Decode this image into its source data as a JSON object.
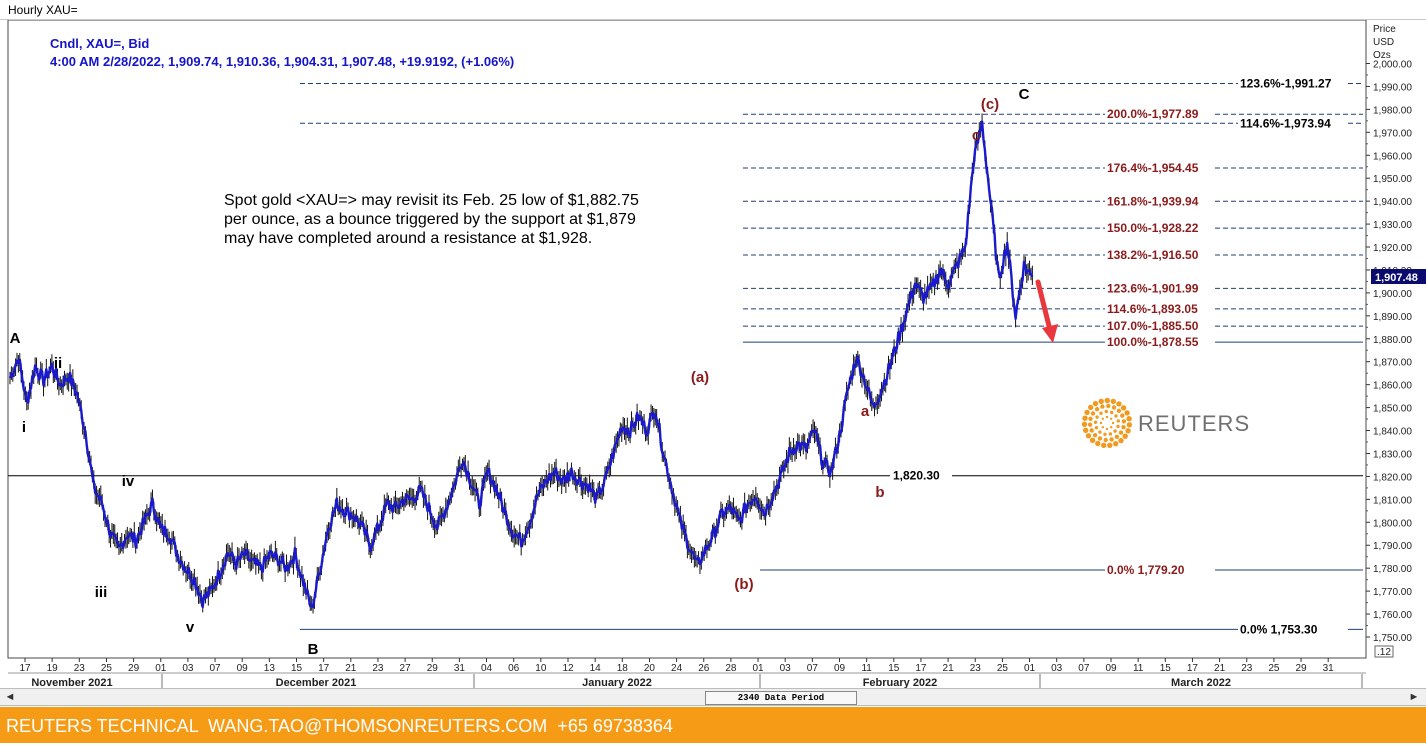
{
  "window": {
    "title": "Hourly XAU="
  },
  "info": {
    "line1": "Cndl, XAU=, Bid",
    "line2": "4:00 AM 2/28/2022, 1,909.74, 1,910.36, 1,904.31, 1,907.48, +19.9192, (+1.06%)"
  },
  "annotation": {
    "line1": "Spot gold <XAU=> may revisit its Feb. 25 low of $1,882.75",
    "line2": "per ounce, as a bounce triggered by the support at $1,879",
    "line3": "may have completed around a resistance at $1,928."
  },
  "logo": {
    "word": "REUTERS"
  },
  "footer": {
    "text": "REUTERS TECHNICAL  WANG.TAO@THOMSONREUTERS.COM  +65 69738364"
  },
  "scroll": {
    "data_period": "2340 Data Period",
    "left_arrow": "◄",
    "right_arrow": "►"
  },
  "colors": {
    "candles": "#1a1acc",
    "fib_line": "#1f3f7a",
    "wave_red": "#8b1a1a",
    "accent_arrow": "#e8383d",
    "footer": "#f59b16"
  },
  "chart_data": {
    "type": "candlestick",
    "instrument": "XAU=",
    "interval": "Hourly",
    "price_axis": {
      "title": [
        "Price",
        "USD",
        "Ozs"
      ],
      "ylim": [
        1741,
        2007
      ],
      "ticks": [
        "1,750.00",
        "1,760.00",
        "1,770.00",
        "1,780.00",
        "1,790.00",
        "1,800.00",
        "1,810.00",
        "1,820.00",
        "1,830.00",
        "1,840.00",
        "1,850.00",
        "1,860.00",
        "1,870.00",
        "1,880.00",
        "1,890.00",
        "1,900.00",
        "1,910.00",
        "1,920.00",
        "1,930.00",
        "1,940.00",
        "1,950.00",
        "1,960.00",
        "1,970.00",
        "1,980.00",
        "1,990.00",
        "2,000.00"
      ],
      "tick_values": [
        1750,
        1760,
        1770,
        1780,
        1790,
        1800,
        1810,
        1820,
        1830,
        1840,
        1850,
        1860,
        1870,
        1880,
        1890,
        1900,
        1910,
        1920,
        1930,
        1940,
        1950,
        1960,
        1970,
        1980,
        1990,
        2000
      ],
      "current_price": 1907.48,
      "current_label": "1,907.48",
      "corner_label": ".12"
    },
    "date_axis": {
      "day_ticks": [
        "17",
        "19",
        "23",
        "25",
        "29",
        "01",
        "03",
        "07",
        "09",
        "13",
        "15",
        "17",
        "21",
        "23",
        "27",
        "29",
        "31",
        "04",
        "06",
        "10",
        "12",
        "14",
        "18",
        "20",
        "24",
        "26",
        "28",
        "01",
        "03",
        "07",
        "09",
        "11",
        "15",
        "17",
        "21",
        "23",
        "25",
        "01",
        "03",
        "07",
        "09",
        "11",
        "15",
        "17",
        "21",
        "23",
        "25",
        "29",
        "31"
      ],
      "months": [
        "November 2021",
        "December 2021",
        "January 2022",
        "February 2022",
        "March 2022"
      ]
    },
    "fib_levels": [
      {
        "label": "123.6%",
        "value": 1991.27,
        "value_text": "1,991.27",
        "color": "black"
      },
      {
        "label": "114.6%",
        "value": 1973.94,
        "value_text": "1,973.94",
        "color": "black"
      },
      {
        "label": "200.0%",
        "value": 1977.89,
        "value_text": "1,977.89",
        "color": "red"
      },
      {
        "label": "176.4%",
        "value": 1954.45,
        "value_text": "1,954.45",
        "color": "red"
      },
      {
        "label": "161.8%",
        "value": 1939.94,
        "value_text": "1,939.94",
        "color": "red"
      },
      {
        "label": "150.0%",
        "value": 1928.22,
        "value_text": "1,928.22",
        "color": "red"
      },
      {
        "label": "138.2%",
        "value": 1916.5,
        "value_text": "1,916.50",
        "color": "red"
      },
      {
        "label": "123.6%",
        "value": 1901.99,
        "value_text": "1,901.99",
        "color": "red"
      },
      {
        "label": "114.6%",
        "value": 1893.05,
        "value_text": "1,893.05",
        "color": "red"
      },
      {
        "label": "107.0%",
        "value": 1885.5,
        "value_text": "1,885.50",
        "color": "red"
      },
      {
        "label": "100.0%",
        "value": 1878.55,
        "value_text": "1,878.55",
        "color": "red"
      },
      {
        "label": "0.0%",
        "value": 1779.2,
        "value_text": "1,779.20",
        "color": "red"
      },
      {
        "label": "0.0%",
        "value": 1753.3,
        "value_text": "1,753.30",
        "color": "black"
      }
    ],
    "support_line": {
      "value": 1820.3,
      "value_text": "1,820.30"
    },
    "wave_labels": [
      {
        "text": "A",
        "color": "black"
      },
      {
        "text": "i",
        "color": "black"
      },
      {
        "text": "ii",
        "color": "black"
      },
      {
        "text": "iii",
        "color": "black"
      },
      {
        "text": "iv",
        "color": "black"
      },
      {
        "text": "v",
        "color": "black"
      },
      {
        "text": "B",
        "color": "black"
      },
      {
        "text": "(a)",
        "color": "red"
      },
      {
        "text": "(b)",
        "color": "red"
      },
      {
        "text": "a",
        "color": "red"
      },
      {
        "text": "b",
        "color": "red"
      },
      {
        "text": "c",
        "color": "red"
      },
      {
        "text": "(c)",
        "color": "red"
      },
      {
        "text": "C",
        "color": "black"
      }
    ],
    "price_path": [
      [
        0,
        1863
      ],
      [
        0.02,
        1872
      ],
      [
        0.04,
        1852
      ],
      [
        0.06,
        1868
      ],
      [
        0.08,
        1862
      ],
      [
        0.1,
        1868
      ],
      [
        0.12,
        1860
      ],
      [
        0.14,
        1864
      ],
      [
        0.16,
        1856
      ],
      [
        0.18,
        1840
      ],
      [
        0.2,
        1815
      ],
      [
        0.22,
        1808
      ],
      [
        0.24,
        1795
      ],
      [
        0.26,
        1788
      ],
      [
        0.28,
        1795
      ],
      [
        0.3,
        1792
      ],
      [
        0.32,
        1800
      ],
      [
        0.34,
        1808
      ],
      [
        0.36,
        1797
      ],
      [
        0.38,
        1795
      ],
      [
        0.4,
        1786
      ],
      [
        0.42,
        1780
      ],
      [
        0.44,
        1775
      ],
      [
        0.46,
        1766
      ],
      [
        0.48,
        1770
      ],
      [
        0.5,
        1778
      ],
      [
        0.52,
        1787
      ],
      [
        0.54,
        1782
      ],
      [
        0.56,
        1786
      ],
      [
        0.58,
        1782
      ],
      [
        0.6,
        1780
      ],
      [
        0.62,
        1786
      ],
      [
        0.64,
        1784
      ],
      [
        0.66,
        1780
      ],
      [
        0.68,
        1786
      ],
      [
        0.7,
        1774
      ],
      [
        0.72,
        1762
      ],
      [
        0.74,
        1780
      ],
      [
        0.76,
        1798
      ],
      [
        0.78,
        1808
      ],
      [
        0.8,
        1805
      ],
      [
        0.82,
        1803
      ],
      [
        0.84,
        1798
      ],
      [
        0.86,
        1790
      ],
      [
        0.88,
        1798
      ],
      [
        0.9,
        1808
      ],
      [
        0.92,
        1806
      ],
      [
        0.94,
        1810
      ],
      [
        0.96,
        1810
      ],
      [
        0.98,
        1814
      ],
      [
        1.0,
        1806
      ],
      [
        1.02,
        1798
      ],
      [
        1.04,
        1806
      ],
      [
        1.06,
        1816
      ],
      [
        1.08,
        1828
      ],
      [
        1.1,
        1818
      ],
      [
        1.12,
        1808
      ],
      [
        1.14,
        1822
      ],
      [
        1.16,
        1815
      ],
      [
        1.18,
        1805
      ],
      [
        1.2,
        1796
      ],
      [
        1.22,
        1792
      ],
      [
        1.24,
        1800
      ],
      [
        1.26,
        1812
      ],
      [
        1.28,
        1818
      ],
      [
        1.3,
        1822
      ],
      [
        1.32,
        1818
      ],
      [
        1.34,
        1822
      ],
      [
        1.36,
        1818
      ],
      [
        1.38,
        1816
      ],
      [
        1.4,
        1810
      ],
      [
        1.42,
        1818
      ],
      [
        1.44,
        1830
      ],
      [
        1.46,
        1842
      ],
      [
        1.48,
        1840
      ],
      [
        1.5,
        1846
      ],
      [
        1.52,
        1840
      ],
      [
        1.54,
        1850
      ],
      [
        1.56,
        1830
      ],
      [
        1.58,
        1815
      ],
      [
        1.6,
        1800
      ],
      [
        1.62,
        1790
      ],
      [
        1.64,
        1781
      ],
      [
        1.66,
        1788
      ],
      [
        1.68,
        1795
      ],
      [
        1.7,
        1804
      ],
      [
        1.72,
        1806
      ],
      [
        1.74,
        1800
      ],
      [
        1.76,
        1808
      ],
      [
        1.78,
        1812
      ],
      [
        1.8,
        1804
      ],
      [
        1.82,
        1812
      ],
      [
        1.84,
        1820
      ],
      [
        1.86,
        1830
      ],
      [
        1.88,
        1834
      ],
      [
        1.9,
        1832
      ],
      [
        1.92,
        1840
      ],
      [
        1.94,
        1826
      ],
      [
        1.96,
        1822
      ],
      [
        1.98,
        1838
      ],
      [
        2.0,
        1858
      ],
      [
        2.02,
        1872
      ],
      [
        2.04,
        1862
      ],
      [
        2.06,
        1850
      ],
      [
        2.08,
        1858
      ],
      [
        2.1,
        1868
      ],
      [
        2.12,
        1880
      ],
      [
        2.14,
        1892
      ],
      [
        2.16,
        1904
      ],
      [
        2.18,
        1898
      ],
      [
        2.2,
        1902
      ],
      [
        2.22,
        1910
      ],
      [
        2.24,
        1904
      ],
      [
        2.26,
        1912
      ],
      [
        2.28,
        1920
      ],
      [
        2.3,
        1958
      ],
      [
        2.32,
        1974
      ],
      [
        2.34,
        1940
      ],
      [
        2.36,
        1906
      ],
      [
        2.38,
        1922
      ],
      [
        2.4,
        1890
      ],
      [
        2.42,
        1912
      ],
      [
        2.44,
        1907
      ]
    ]
  }
}
